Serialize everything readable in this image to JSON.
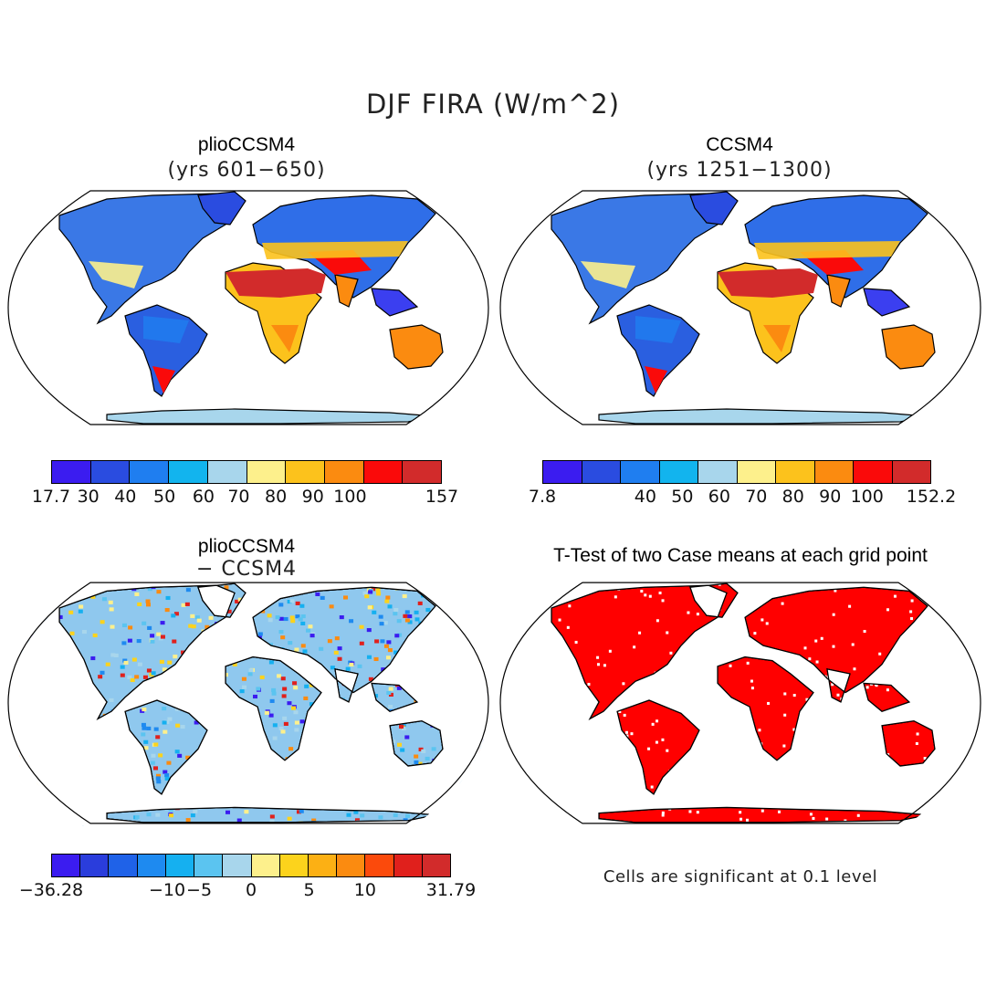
{
  "figure": {
    "title": "DJF FIRA (W/m^2)"
  },
  "panels": [
    {
      "id": "plio",
      "title": "plioCCSM4",
      "subtitle": "(yrs 601−650)",
      "colorbar": {
        "colors": [
          "#3b1cf0",
          "#2a4ce0",
          "#1f7ef0",
          "#12b4ee",
          "#a8d6ec",
          "#fdf08c",
          "#fcc21c",
          "#fb8b10",
          "#fa0a0a",
          "#d22b2b"
        ],
        "labels": [
          "17.7",
          "30",
          "40",
          "50",
          "60",
          "70",
          "80",
          "90",
          "100",
          "157"
        ]
      }
    },
    {
      "id": "ccsm4",
      "title": "CCSM4",
      "subtitle": "(yrs 1251−1300)",
      "colorbar": {
        "colors": [
          "#3b1cf0",
          "#2a4ce0",
          "#1f7ef0",
          "#12b4ee",
          "#a8d6ec",
          "#fdf08c",
          "#fcc21c",
          "#fb8b10",
          "#fa0a0a",
          "#d22b2b"
        ],
        "labels": [
          "7.8",
          "40",
          "50",
          "60",
          "70",
          "80",
          "90",
          "100",
          "152.2"
        ]
      }
    },
    {
      "id": "diff",
      "title": "plioCCSM4",
      "subtitle": "− CCSM4",
      "colorbar": {
        "colors": [
          "#3b1cf0",
          "#2a3ddc",
          "#1f62e8",
          "#1e8af0",
          "#15b0f0",
          "#5bc4f0",
          "#a8d6ec",
          "#fdf08c",
          "#fcd31c",
          "#fcb014",
          "#fb8b10",
          "#fb4a0c",
          "#e0201c",
          "#d22b2b"
        ],
        "labels": [
          "−36.28",
          "−10",
          "−5",
          "0",
          "5",
          "10",
          "31.79"
        ]
      }
    },
    {
      "id": "ttest",
      "title": "T-Test of two Case means at each grid point",
      "note": "Cells are significant at 0.1 level"
    }
  ],
  "colors": {
    "ocean": "#ffffff",
    "outline": "#000000",
    "significant": "#ff0000"
  }
}
